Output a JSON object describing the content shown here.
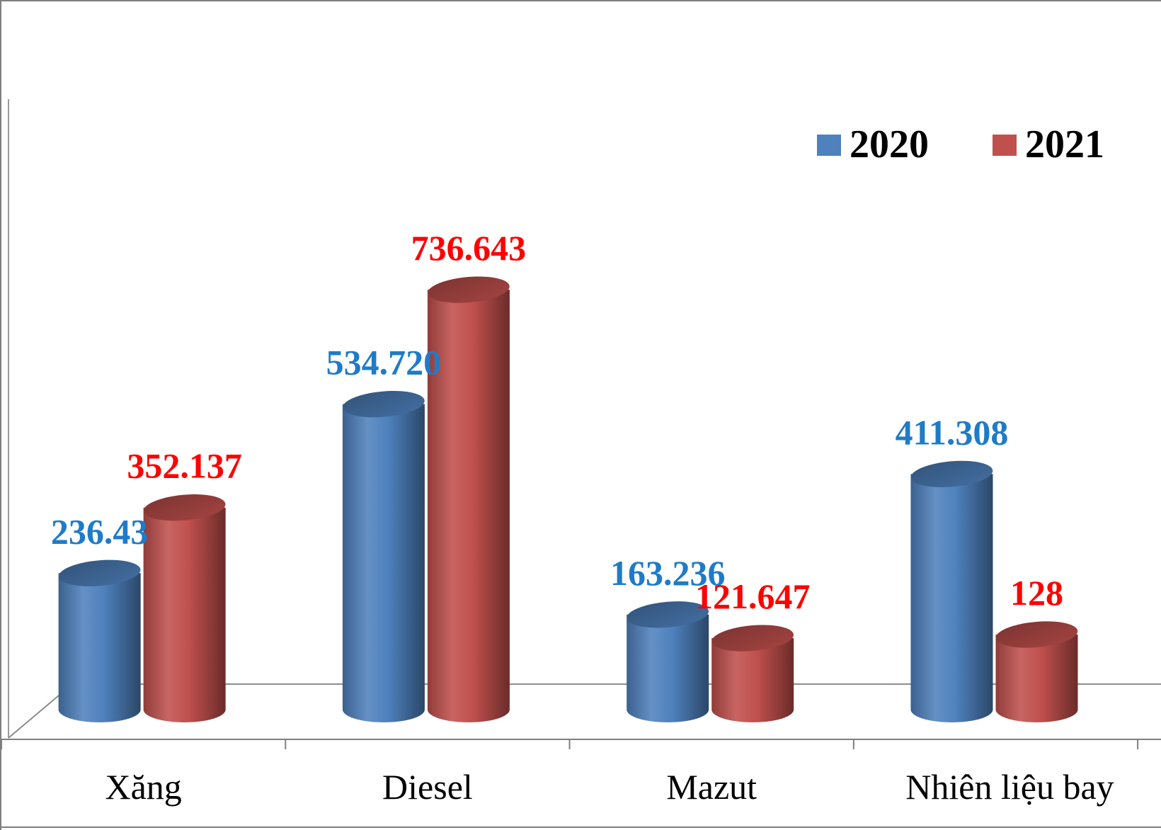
{
  "chart_data": {
    "type": "bar",
    "style": "3d-cylinder",
    "categories": [
      "Xăng",
      "Diesel",
      "Mazut",
      "Nhiên liệu bay"
    ],
    "series": [
      {
        "name": "2020",
        "color": "#4f81bd",
        "label_color": "#1f7bc8",
        "values": [
          236.43,
          534.72,
          163.236,
          411.308
        ],
        "labels": [
          "236.43",
          "534.720",
          "163.236",
          "411.308"
        ]
      },
      {
        "name": "2021",
        "color": "#c0504d",
        "label_color": "#ff0000",
        "values": [
          352.137,
          736.643,
          121.647,
          128
        ],
        "labels": [
          "352.137",
          "736.643",
          "121.647",
          "128"
        ]
      }
    ],
    "ylim": [
      0,
      800
    ],
    "grid": false,
    "legend_position": "top-right"
  }
}
